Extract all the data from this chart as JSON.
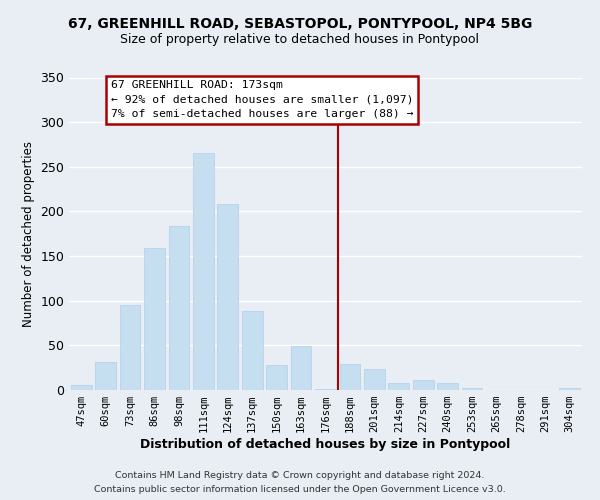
{
  "title": "67, GREENHILL ROAD, SEBASTOPOL, PONTYPOOL, NP4 5BG",
  "subtitle": "Size of property relative to detached houses in Pontypool",
  "xlabel": "Distribution of detached houses by size in Pontypool",
  "ylabel": "Number of detached properties",
  "bar_labels": [
    "47sqm",
    "60sqm",
    "73sqm",
    "86sqm",
    "98sqm",
    "111sqm",
    "124sqm",
    "137sqm",
    "150sqm",
    "163sqm",
    "176sqm",
    "188sqm",
    "201sqm",
    "214sqm",
    "227sqm",
    "240sqm",
    "253sqm",
    "265sqm",
    "278sqm",
    "291sqm",
    "304sqm"
  ],
  "bar_heights": [
    6,
    31,
    95,
    159,
    184,
    265,
    208,
    89,
    28,
    49,
    1,
    29,
    23,
    8,
    11,
    8,
    2,
    0,
    0,
    0,
    2
  ],
  "bar_color": "#c5dff0",
  "bar_edge_color": "#b0cfe8",
  "vline_x": 10.5,
  "vline_color": "#aa0000",
  "annotation_title": "67 GREENHILL ROAD: 173sqm",
  "annotation_line1": "← 92% of detached houses are smaller (1,097)",
  "annotation_line2": "7% of semi-detached houses are larger (88) →",
  "annotation_box_color": "#ffffff",
  "annotation_box_edge": "#aa0000",
  "footer_line1": "Contains HM Land Registry data © Crown copyright and database right 2024.",
  "footer_line2": "Contains public sector information licensed under the Open Government Licence v3.0.",
  "ylim": [
    0,
    350
  ],
  "background_color": "#e8eef4",
  "grid_color": "#ffffff",
  "yticks": [
    0,
    50,
    100,
    150,
    200,
    250,
    300,
    350
  ]
}
